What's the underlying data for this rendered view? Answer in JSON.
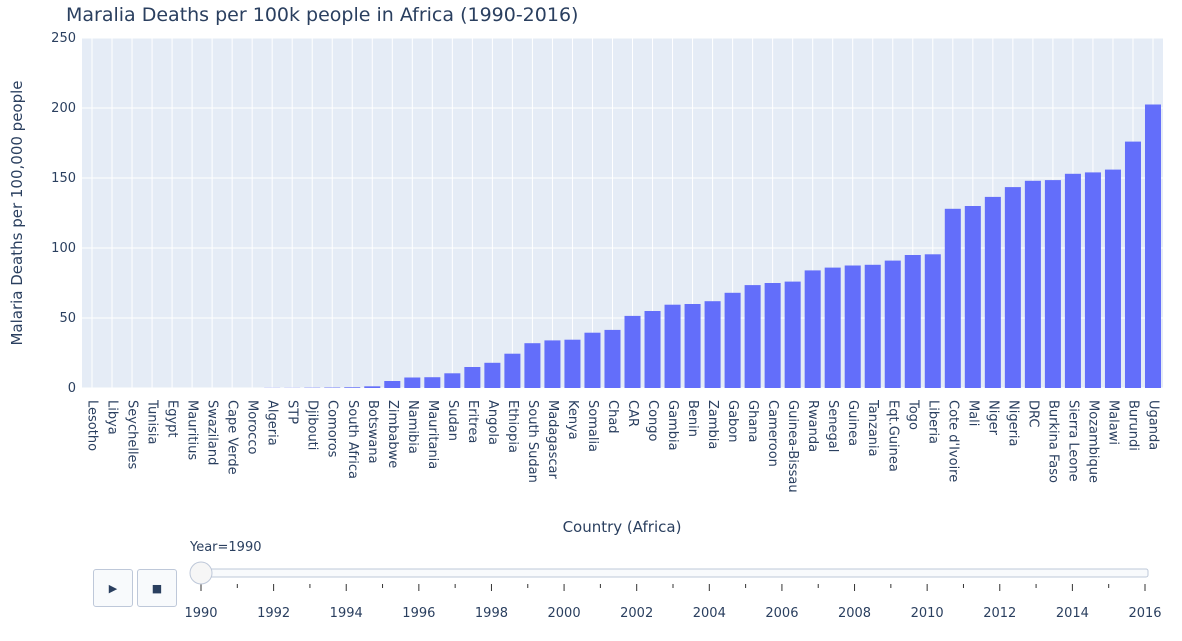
{
  "chart_data": {
    "type": "bar",
    "title": "Maralia Deaths per 100k people in Africa (1990-2016)",
    "xlabel": "Country (Africa)",
    "ylabel": "Malaria Deaths per 100,000 people",
    "ylim": [
      0,
      250
    ],
    "yticks": [
      0,
      50,
      100,
      150,
      200,
      250
    ],
    "grid": true,
    "bar_color": "#636efa",
    "categories": [
      "Lesotho",
      "Libya",
      "Seychelles",
      "Tunisia",
      "Egypt",
      "Mauritius",
      "Swaziland",
      "Cape Verde",
      "Morocco",
      "Algeria",
      "STP",
      "Djibouti",
      "Comoros",
      "South Africa",
      "Botswana",
      "Zimbabwe",
      "Namibia",
      "Mauritania",
      "Sudan",
      "Eritrea",
      "Angola",
      "Ethiopia",
      "South Sudan",
      "Madagascar",
      "Kenya",
      "Somalia",
      "Chad",
      "CAR",
      "Congo",
      "Gambia",
      "Benin",
      "Zambia",
      "Gabon",
      "Ghana",
      "Cameroon",
      "Guinea-Bissau",
      "Rwanda",
      "Senegal",
      "Guinea",
      "Tanzania",
      "Eqt.Guinea",
      "Togo",
      "Liberia",
      "Cote d'Ivoire",
      "Mali",
      "Niger",
      "Nigeria",
      "DRC",
      "Burkina Faso",
      "Sierra Leone",
      "Mozambique",
      "Malawi",
      "Burundi",
      "Uganda"
    ],
    "values": [
      0,
      0,
      0,
      0,
      0,
      0,
      0,
      0,
      0,
      0.1,
      0.1,
      0.2,
      0.3,
      0.5,
      1.2,
      5,
      7.5,
      7.7,
      10.5,
      15,
      18,
      24.5,
      32,
      34,
      34.5,
      39.5,
      41.5,
      51.5,
      55,
      59.5,
      60,
      62,
      68,
      73.5,
      75,
      76,
      84,
      86,
      87.5,
      88,
      91,
      95,
      95.5,
      128,
      130,
      136.5,
      143.5,
      148,
      148.5,
      153,
      154,
      156,
      176,
      202.5
    ]
  },
  "slider": {
    "current_label": "Year=1990",
    "value": 1990,
    "range": [
      1990,
      2016
    ],
    "tick_labels": [
      "1990",
      "1992",
      "1994",
      "1996",
      "1998",
      "2000",
      "2002",
      "2004",
      "2006",
      "2008",
      "2010",
      "2012",
      "2014",
      "2016"
    ]
  },
  "controls": {
    "play_icon": "▶",
    "stop_icon": "■"
  }
}
